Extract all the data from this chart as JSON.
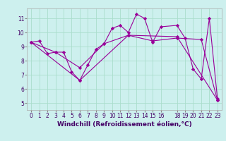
{
  "title": "",
  "xlabel": "Windchill (Refroidissement éolien,°C)",
  "ylabel": "",
  "background_color": "#cdf0ee",
  "grid_color": "#aaddcc",
  "line_color": "#990099",
  "xlim": [
    -0.5,
    23.5
  ],
  "ylim": [
    4.5,
    11.7
  ],
  "xticks": [
    0,
    1,
    2,
    3,
    4,
    5,
    6,
    7,
    8,
    9,
    10,
    11,
    12,
    13,
    14,
    15,
    16,
    18,
    19,
    20,
    21,
    22,
    23
  ],
  "yticks": [
    5,
    6,
    7,
    8,
    9,
    10,
    11
  ],
  "series1": [
    [
      0,
      9.3
    ],
    [
      1,
      9.4
    ],
    [
      2,
      8.5
    ],
    [
      3,
      8.6
    ],
    [
      4,
      8.6
    ],
    [
      5,
      7.2
    ],
    [
      6,
      6.6
    ],
    [
      7,
      7.7
    ],
    [
      8,
      8.8
    ],
    [
      9,
      9.2
    ],
    [
      10,
      10.3
    ],
    [
      11,
      10.5
    ],
    [
      12,
      10.0
    ],
    [
      13,
      11.3
    ],
    [
      14,
      11.0
    ],
    [
      15,
      9.3
    ],
    [
      16,
      10.4
    ],
    [
      18,
      10.5
    ],
    [
      19,
      9.6
    ],
    [
      20,
      7.4
    ],
    [
      21,
      6.7
    ],
    [
      22,
      11.0
    ],
    [
      23,
      5.3
    ]
  ],
  "series2": [
    [
      0,
      9.3
    ],
    [
      3,
      8.6
    ],
    [
      6,
      7.5
    ],
    [
      9,
      9.2
    ],
    [
      12,
      9.8
    ],
    [
      15,
      9.4
    ],
    [
      18,
      9.6
    ],
    [
      21,
      9.5
    ],
    [
      23,
      5.2
    ]
  ],
  "series3": [
    [
      0,
      9.3
    ],
    [
      6,
      6.6
    ],
    [
      12,
      9.8
    ],
    [
      18,
      9.7
    ],
    [
      23,
      5.2
    ]
  ],
  "tick_fontsize": 5.5,
  "xlabel_fontsize": 6.5,
  "xlabel_color": "#440066",
  "xlabel_fontweight": "bold"
}
